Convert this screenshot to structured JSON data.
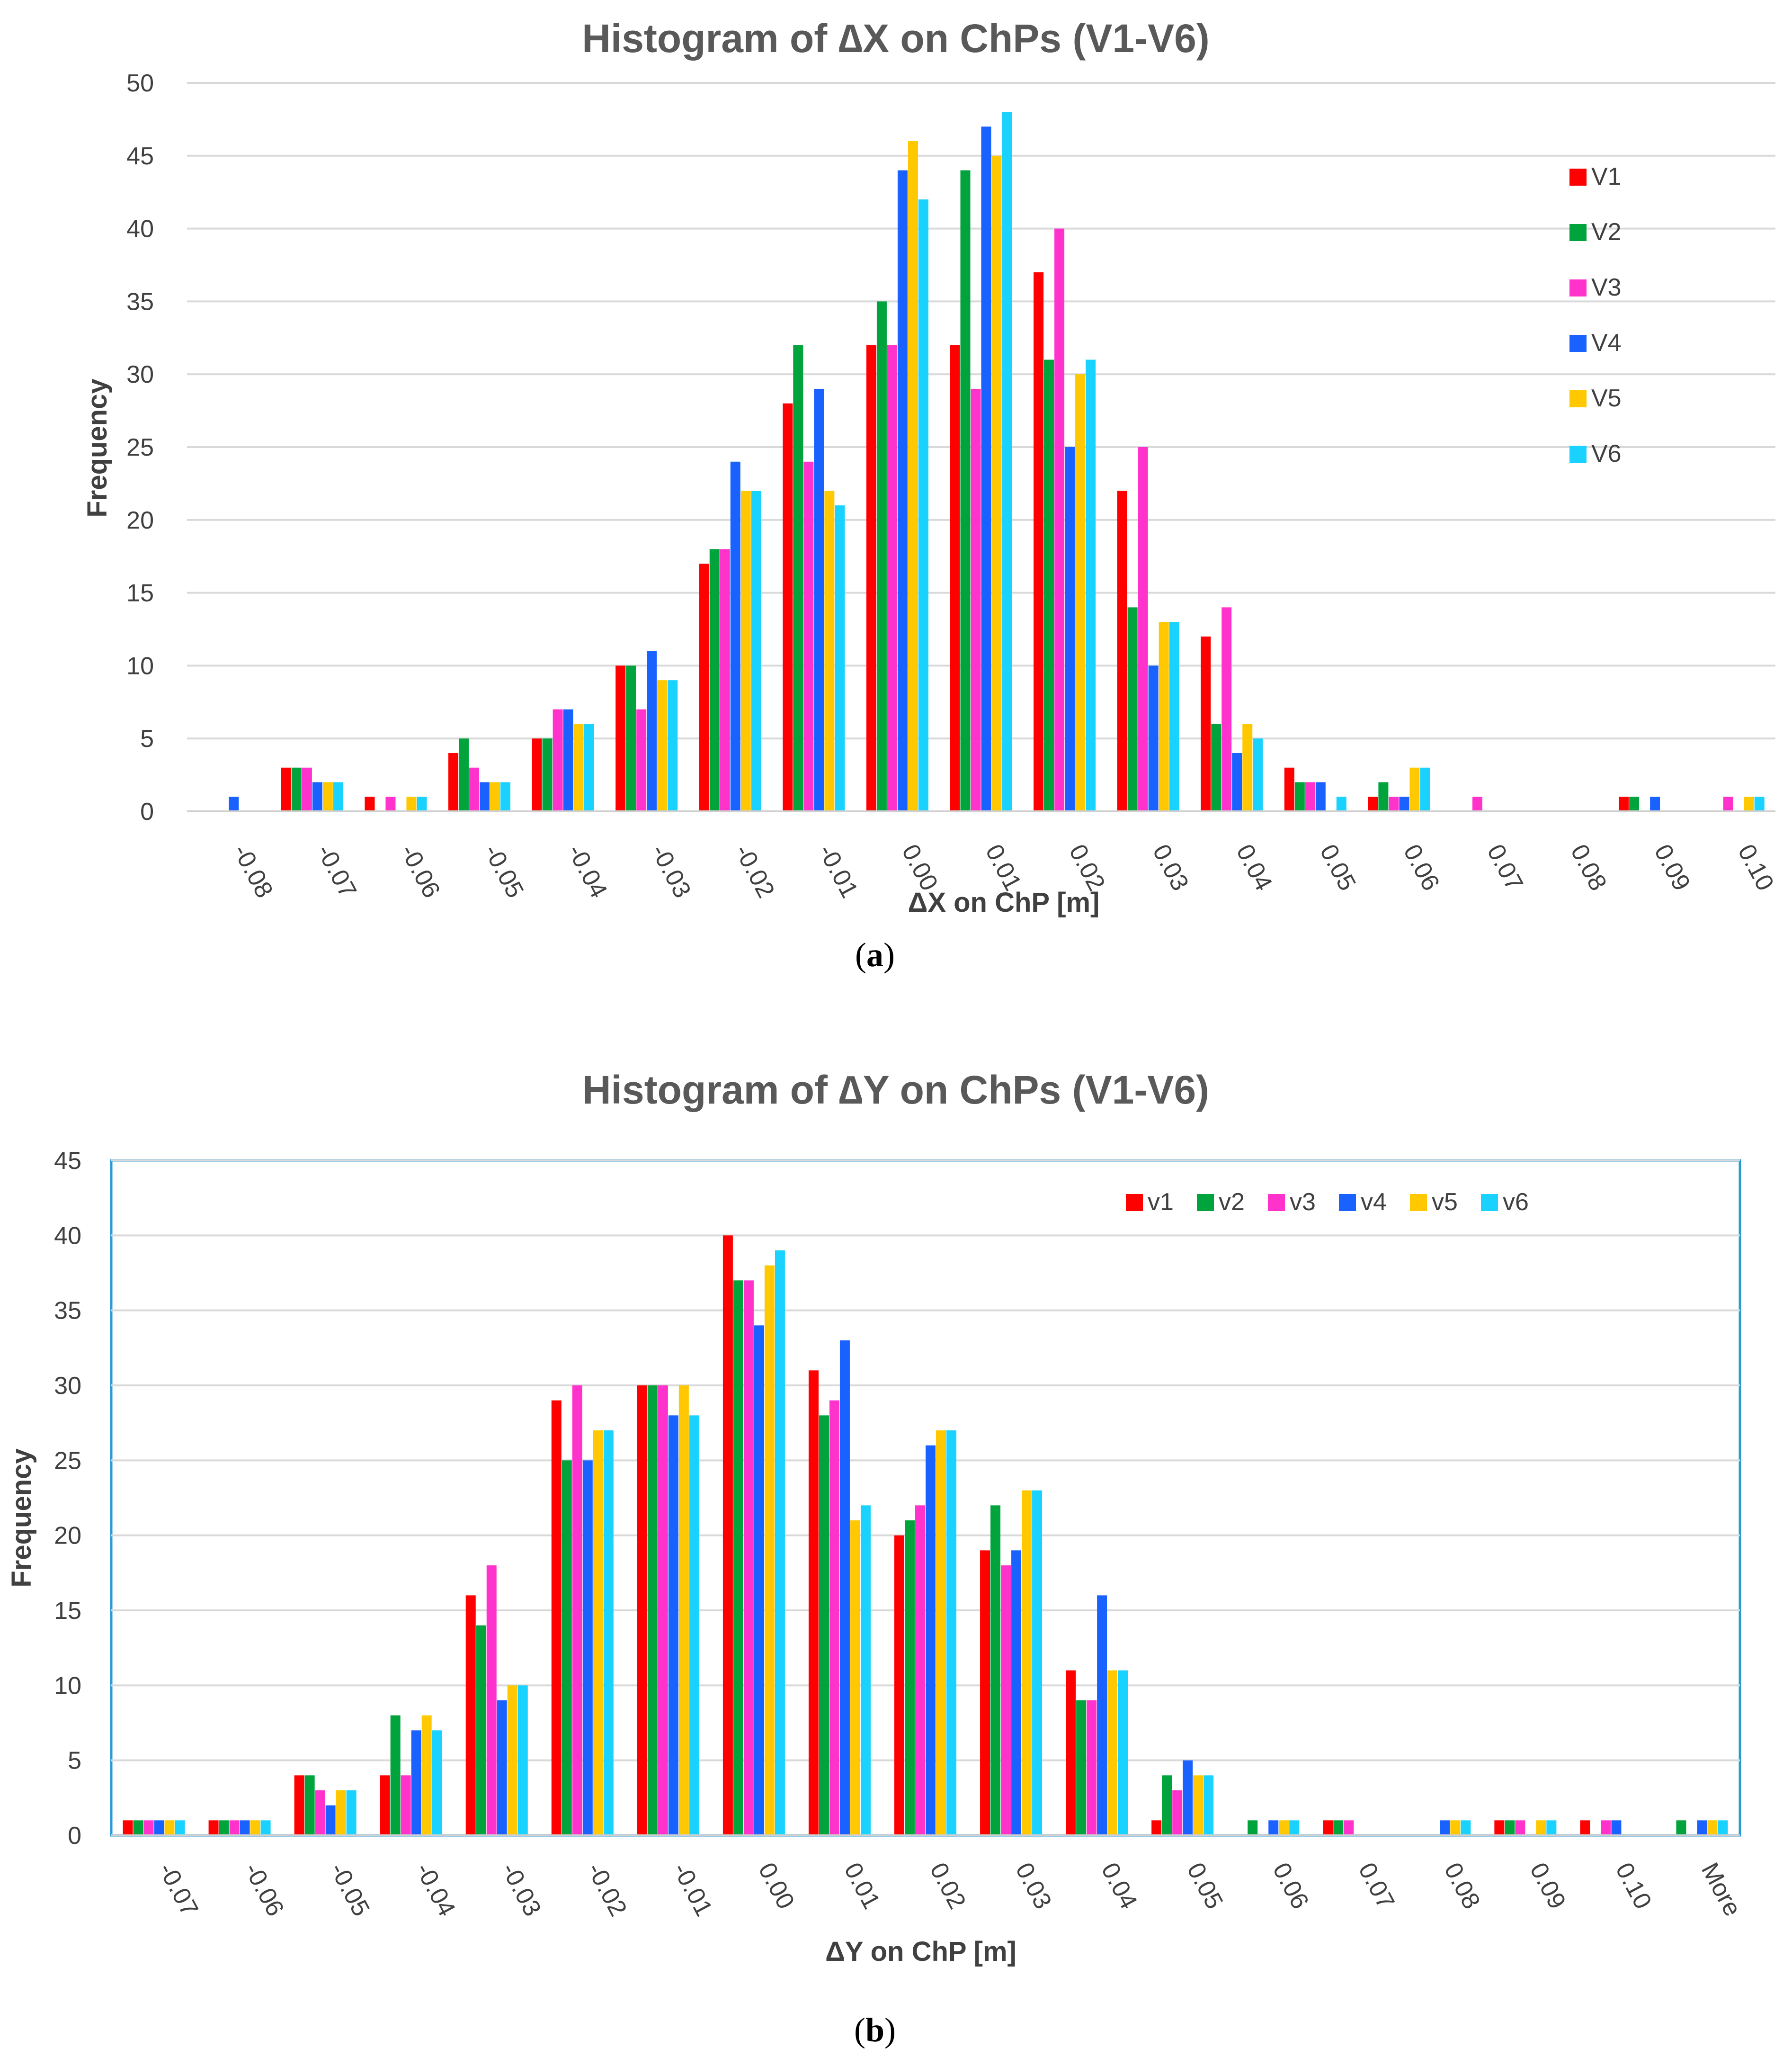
{
  "chart_data": [
    {
      "type": "bar",
      "title": "Histogram of ∆X on ChPs (V1-V6)",
      "xlabel": "ΔX on ChP [m]",
      "ylabel": "Frequency",
      "ylim": [
        0,
        50
      ],
      "ytick_step": 5,
      "grid": true,
      "legend_placement": "right",
      "legend_layout": "vertical",
      "caption_letter": "a",
      "categories": [
        "-0.08",
        "-0.07",
        "-0.06",
        "-0.05",
        "-0.04",
        "-0.03",
        "-0.02",
        "-0.01",
        "0.00",
        "0.01",
        "0.02",
        "0.03",
        "0.04",
        "0.05",
        "0.06",
        "0.07",
        "0.08",
        "0.09",
        "0.10"
      ],
      "series": [
        {
          "name": "V1",
          "color": "#ff0000",
          "values": [
            0,
            3,
            1,
            4,
            5,
            10,
            17,
            28,
            32,
            32,
            37,
            22,
            12,
            3,
            1,
            0,
            0,
            1,
            0
          ]
        },
        {
          "name": "V2",
          "color": "#00a33c",
          "values": [
            0,
            3,
            0,
            5,
            5,
            10,
            18,
            32,
            35,
            44,
            31,
            14,
            6,
            2,
            2,
            0,
            0,
            1,
            0
          ]
        },
        {
          "name": "V3",
          "color": "#ff33cc",
          "values": [
            0,
            3,
            1,
            3,
            7,
            7,
            18,
            24,
            32,
            29,
            40,
            25,
            14,
            2,
            1,
            1,
            0,
            0,
            1
          ]
        },
        {
          "name": "V4",
          "color": "#1a62ff",
          "values": [
            1,
            2,
            0,
            2,
            7,
            11,
            24,
            29,
            44,
            47,
            25,
            10,
            4,
            2,
            1,
            0,
            0,
            1,
            0
          ]
        },
        {
          "name": "V5",
          "color": "#ffc800",
          "values": [
            0,
            2,
            1,
            2,
            6,
            9,
            22,
            22,
            46,
            45,
            30,
            13,
            6,
            0,
            3,
            0,
            0,
            0,
            1
          ]
        },
        {
          "name": "V6",
          "color": "#19d2ff",
          "values": [
            0,
            2,
            1,
            2,
            6,
            9,
            22,
            21,
            42,
            48,
            31,
            13,
            5,
            1,
            3,
            0,
            0,
            0,
            1
          ]
        }
      ]
    },
    {
      "type": "bar",
      "title": "Histogram of ∆Y on ChPs (V1-V6)",
      "xlabel": "ΔY on ChP [m]",
      "ylabel": "Frequency",
      "ylim": [
        0,
        45
      ],
      "ytick_step": 5,
      "grid": true,
      "legend_placement": "top-right",
      "legend_layout": "horizontal",
      "caption_letter": "b",
      "categories": [
        "-0.07",
        "-0.06",
        "-0.05",
        "-0.04",
        "-0.03",
        "-0.02",
        "-0.01",
        "0.00",
        "0.01",
        "0.02",
        "0.03",
        "0.04",
        "0.05",
        "0.06",
        "0.07",
        "0.08",
        "0.09",
        "0.10",
        "More"
      ],
      "series": [
        {
          "name": "v1",
          "color": "#ff0000",
          "values": [
            1,
            1,
            4,
            4,
            16,
            29,
            30,
            40,
            31,
            20,
            19,
            11,
            1,
            0,
            1,
            0,
            1,
            1,
            0
          ]
        },
        {
          "name": "v2",
          "color": "#00a33c",
          "values": [
            1,
            1,
            4,
            8,
            14,
            25,
            30,
            37,
            28,
            21,
            22,
            9,
            4,
            1,
            1,
            0,
            1,
            0,
            1
          ]
        },
        {
          "name": "v3",
          "color": "#ff33cc",
          "values": [
            1,
            1,
            3,
            4,
            18,
            30,
            30,
            37,
            29,
            22,
            18,
            9,
            3,
            0,
            1,
            0,
            1,
            1,
            0
          ]
        },
        {
          "name": "v4",
          "color": "#1a62ff",
          "values": [
            1,
            1,
            2,
            7,
            9,
            25,
            28,
            34,
            33,
            26,
            19,
            16,
            5,
            1,
            0,
            1,
            0,
            1,
            1
          ]
        },
        {
          "name": "v5",
          "color": "#ffc800",
          "values": [
            1,
            1,
            3,
            8,
            10,
            27,
            30,
            38,
            21,
            27,
            23,
            11,
            4,
            1,
            0,
            1,
            1,
            0,
            1
          ]
        },
        {
          "name": "v6",
          "color": "#19d2ff",
          "values": [
            1,
            1,
            3,
            7,
            10,
            27,
            28,
            39,
            22,
            27,
            23,
            11,
            4,
            1,
            0,
            1,
            1,
            0,
            1
          ]
        }
      ]
    }
  ]
}
